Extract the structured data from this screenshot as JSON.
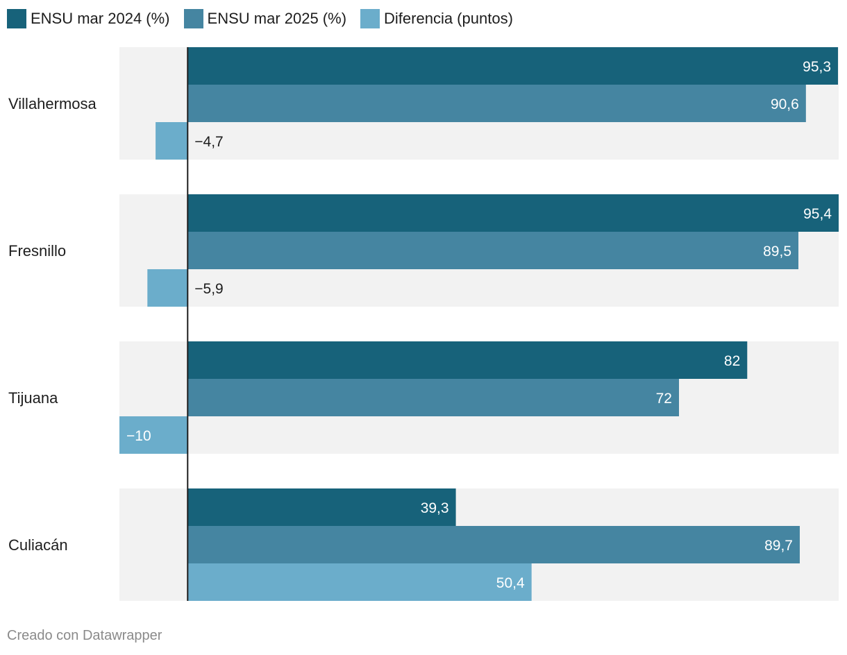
{
  "legend": [
    {
      "label": "ENSU mar 2024 (%)",
      "color": "#17627a"
    },
    {
      "label": "ENSU mar 2025 (%)",
      "color": "#4585a1"
    },
    {
      "label": "Diferencia (puntos)",
      "color": "#6badcb"
    }
  ],
  "chart_data": {
    "type": "bar",
    "orientation": "horizontal",
    "categories": [
      "Villahermosa",
      "Fresnillo",
      "Tijuana",
      "Culiacán"
    ],
    "series": [
      {
        "name": "ENSU mar 2024 (%)",
        "values": [
          95.3,
          95.4,
          82,
          39.3
        ],
        "labels": [
          "95,3",
          "95,4",
          "82",
          "39,3"
        ],
        "color": "#17627a"
      },
      {
        "name": "ENSU mar 2025 (%)",
        "values": [
          90.6,
          89.5,
          72,
          89.7
        ],
        "labels": [
          "90,6",
          "89,5",
          "72",
          "89,7"
        ],
        "color": "#4585a1"
      },
      {
        "name": "Diferencia (puntos)",
        "values": [
          -4.7,
          -5.9,
          -10,
          50.4
        ],
        "labels": [
          "−4,7",
          "−5,9",
          "−10",
          "50,4"
        ],
        "color": "#6badcb"
      }
    ],
    "xlim": [
      -10,
      95.4
    ],
    "grid": false,
    "legend_position": "top-left"
  },
  "footer": {
    "credit": "Creado con Datawrapper"
  }
}
